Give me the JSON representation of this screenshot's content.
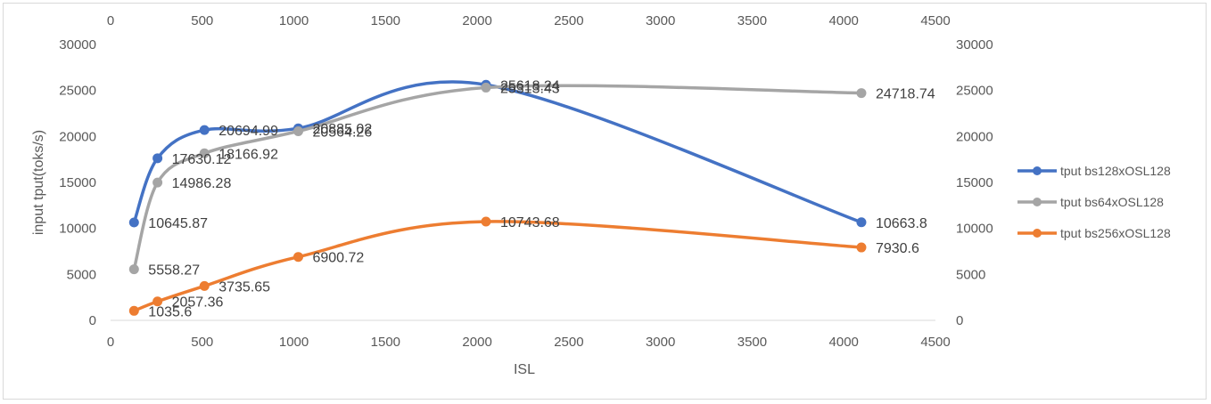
{
  "chart_data": {
    "type": "line",
    "smooth": true,
    "title": "",
    "xlabel": "ISL",
    "ylabel": "input tput(toks/s)",
    "x": [
      128,
      256,
      512,
      1024,
      2048,
      4096
    ],
    "xlim": [
      0,
      4500
    ],
    "x_ticks": [
      "0",
      "500",
      "1000",
      "1500",
      "2000",
      "2500",
      "3000",
      "3500",
      "4000",
      "4500"
    ],
    "x_ticks_top": true,
    "ylim": [
      0,
      30000
    ],
    "y_ticks": [
      "0",
      "5000",
      "10000",
      "15000",
      "20000",
      "25000",
      "30000"
    ],
    "y_ticks_right": true,
    "grid": false,
    "legend": "right",
    "series": [
      {
        "name": "tput bs128xOSL128",
        "color": "#4472c4",
        "values": [
          10645.87,
          17630.12,
          20694.99,
          20885.02,
          25618.24,
          10663.8
        ],
        "labels": [
          "10645.87",
          "17630.12",
          "20694.99",
          "20885.02",
          "25618.24",
          "10663.8"
        ]
      },
      {
        "name": "tput bs64xOSL128",
        "color": "#a5a5a5",
        "values": [
          5558.27,
          14986.28,
          18166.92,
          20564.26,
          25313.43,
          24718.74
        ],
        "labels": [
          "5558.27",
          "14986.28",
          "18166.92",
          "20564.26",
          "25313.43",
          "24718.74"
        ]
      },
      {
        "name": "tput bs256xOSL128",
        "color": "#ed7d31",
        "values": [
          1035.6,
          2057.36,
          3735.65,
          6900.72,
          10743.68,
          7930.6
        ],
        "labels": [
          "1035.6",
          "2057.36",
          "3735.65",
          "6900.72",
          "10743.68",
          "7930.6"
        ]
      }
    ]
  }
}
